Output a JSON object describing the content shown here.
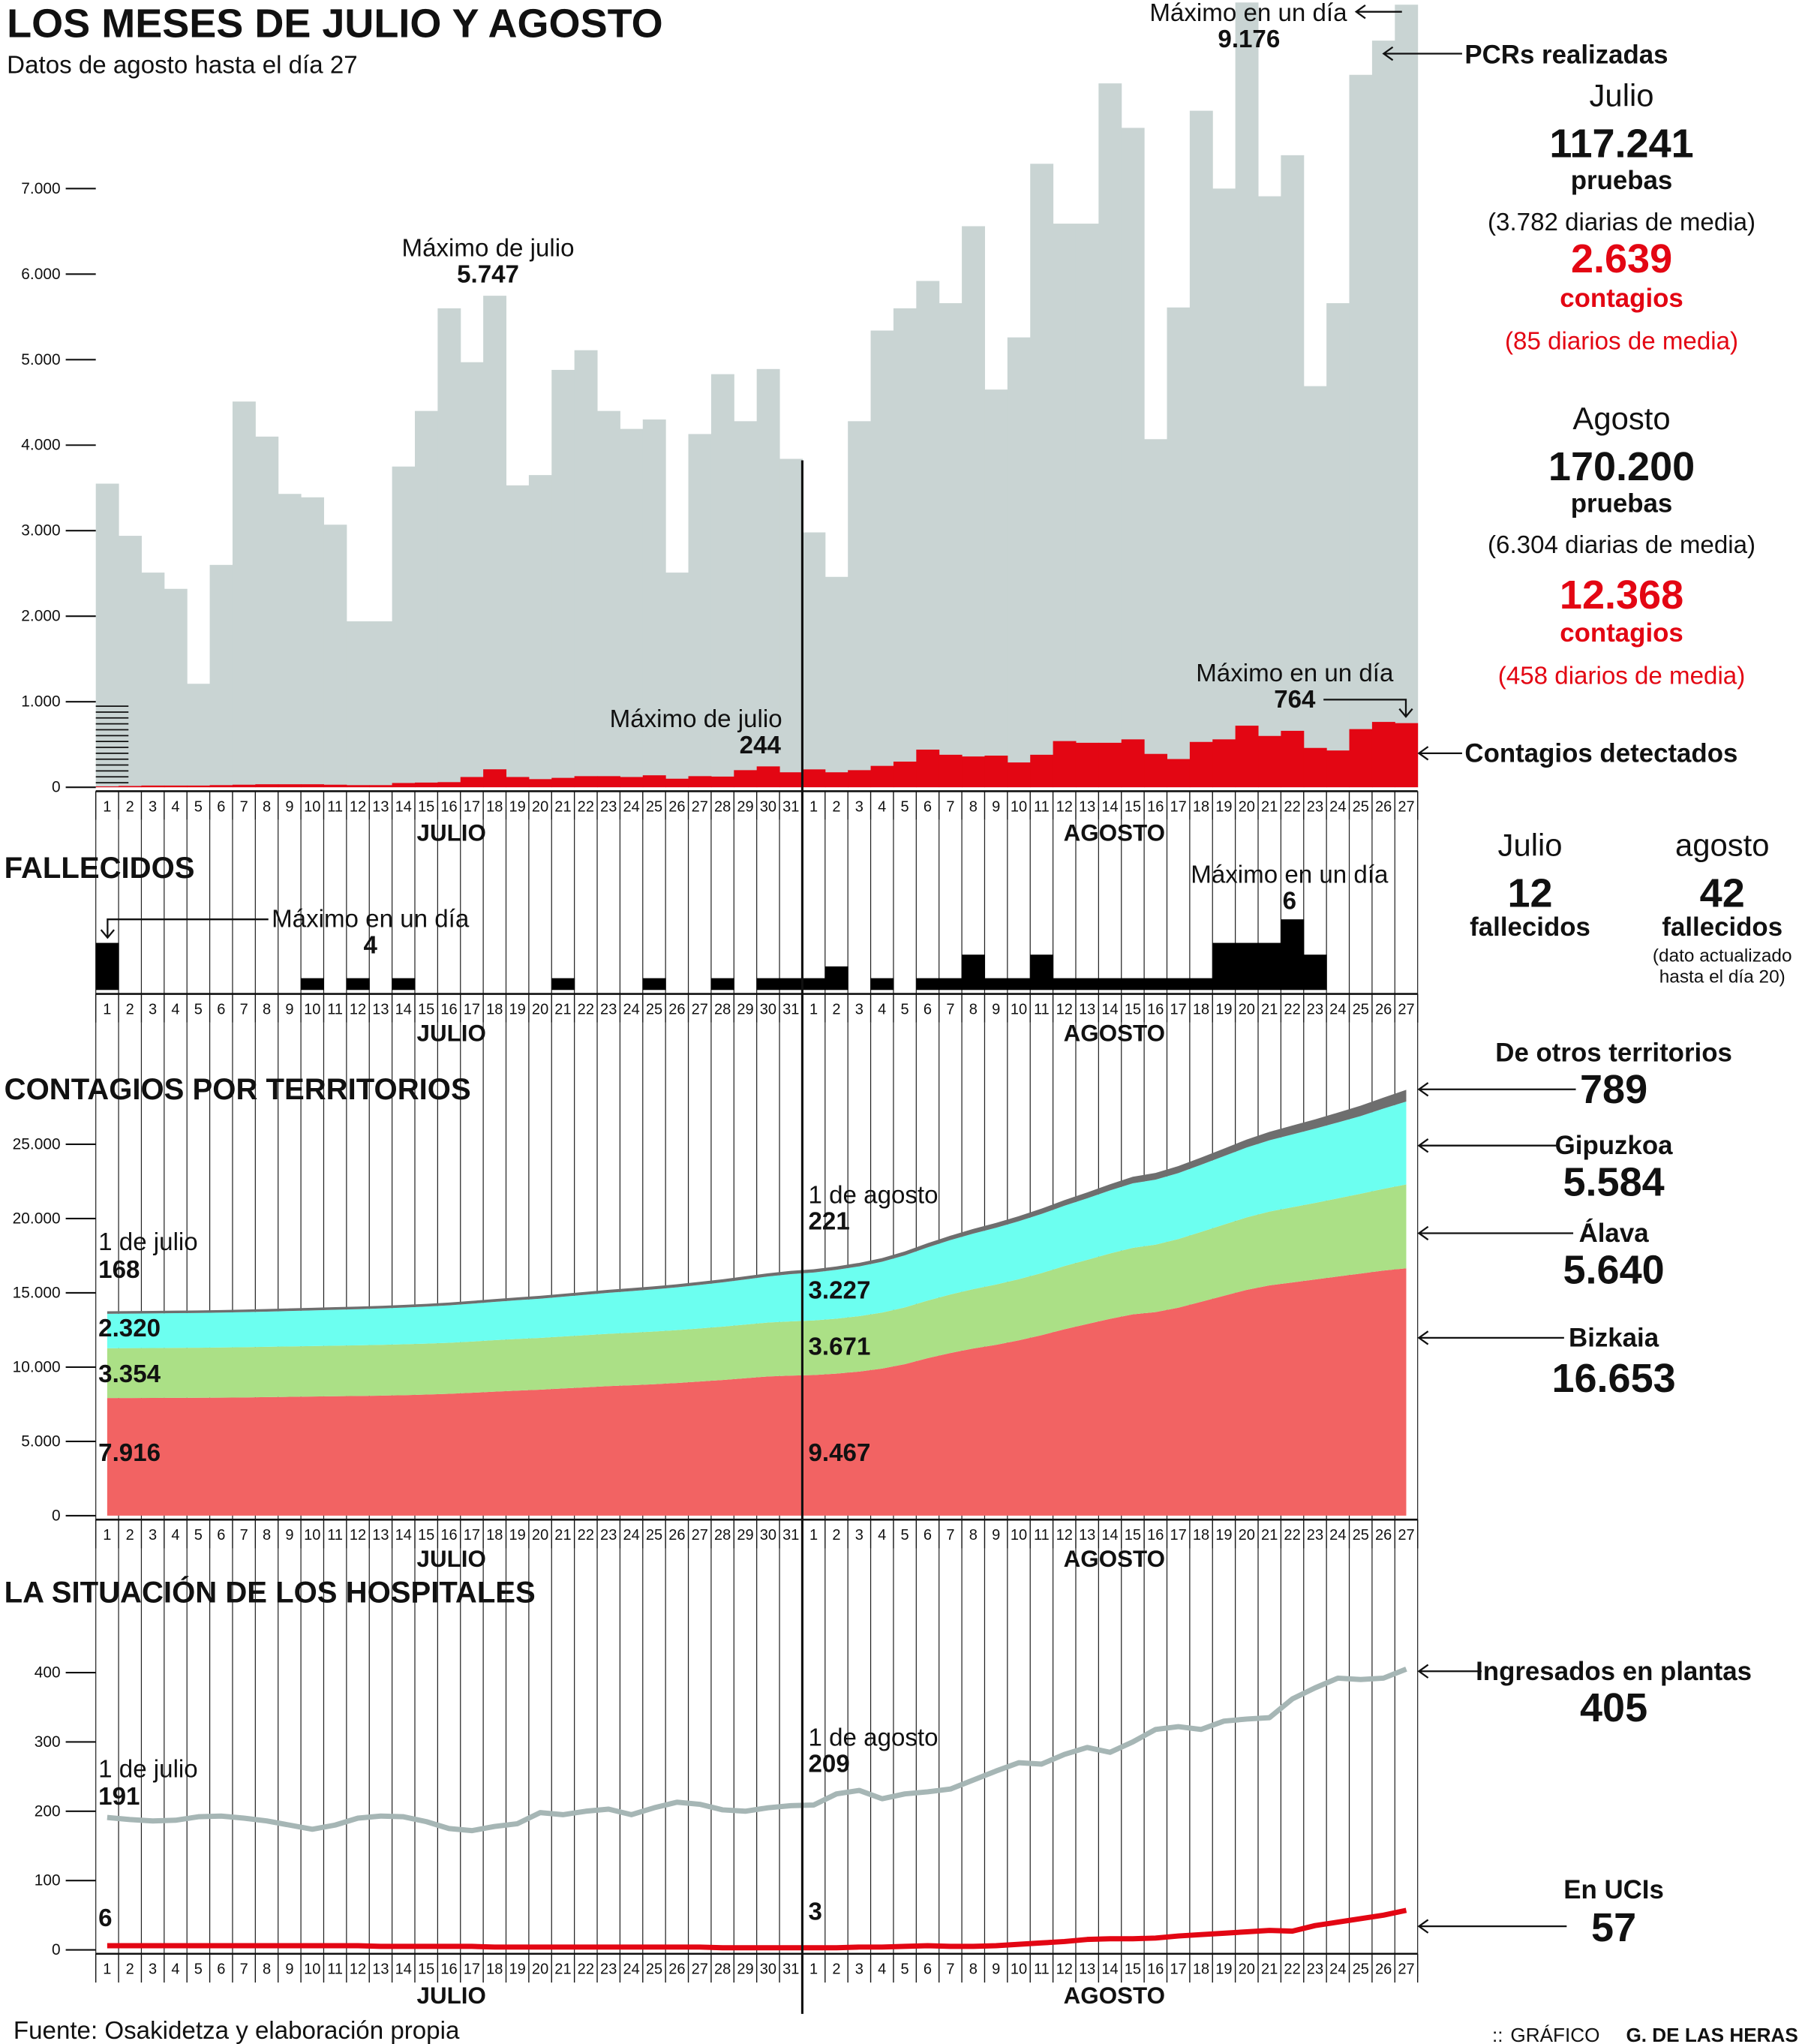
{
  "title": "LOS MESES DE JULIO Y AGOSTO",
  "subtitle": "Datos de agosto hasta el día 27",
  "months": {
    "julio": "JULIO",
    "agosto": "AGOSTO"
  },
  "colors": {
    "pcr": "#c9d4d3",
    "contagios": "#e30613",
    "fallecidos": "#000000",
    "bizkaia": "#f26363",
    "alava": "#abe086",
    "gipuzkoa": "#6cfff0",
    "otros": "#6e6e6e",
    "plantas": "#a6b6b5",
    "ucis": "#e30613"
  },
  "annotations": {
    "pcr_max_label": "Máximo en un día",
    "pcr_max_value": "9.176",
    "pcr_julio_max_label": "Máximo de julio",
    "pcr_julio_max_value": "5.747",
    "cont_julio_max_label": "Máximo de julio",
    "cont_julio_max_value": "244",
    "cont_max_label": "Máximo en un día",
    "cont_max_value": "764",
    "fall_julio_max_label": "Máximo en un día",
    "fall_julio_max_value": "4",
    "fall_max_label": "Máximo en un día",
    "fall_max_value": "6",
    "terr_jul_label": "1 de julio",
    "terr_jul_otros": "168",
    "terr_jul_gipuzkoa": "2.320",
    "terr_jul_alava": "3.354",
    "terr_jul_bizkaia": "7.916",
    "terr_ago_label": "1 de agosto",
    "terr_ago_otros": "221",
    "terr_ago_gipuzkoa": "3.227",
    "terr_ago_alava": "3.671",
    "terr_ago_bizkaia": "9.467",
    "hosp_jul_label": "1 de julio",
    "hosp_jul_plantas": "191",
    "hosp_jul_ucis": "6",
    "hosp_ago_label": "1 de agosto",
    "hosp_ago_plantas": "209",
    "hosp_ago_ucis": "3"
  },
  "sections": {
    "fallecidos": "FALLECIDOS",
    "territorios": "CONTAGIOS POR TERRITORIOS",
    "hospitales": "LA SITUACIÓN DE LOS HOSPITALES"
  },
  "summary": {
    "pcr_label": "PCRs realizadas",
    "contagios_label": "Contagios detectados",
    "julio": {
      "month": "Julio",
      "pruebas": "117.241",
      "pruebas_label": "pruebas",
      "pruebas_media": "(3.782 diarias de media)",
      "contagios": "2.639",
      "contagios_label": "contagios",
      "contagios_media": "(85 diarios de media)"
    },
    "agosto": {
      "month": "Agosto",
      "pruebas": "170.200",
      "pruebas_label": "pruebas",
      "pruebas_media": "(6.304 diarias de media)",
      "contagios": "12.368",
      "contagios_label": "contagios",
      "contagios_media": "(458 diarios de media)"
    },
    "fallecidos": {
      "julio_label": "Julio",
      "agosto_label": "agosto",
      "julio": "12",
      "agosto": "42",
      "unit": "fallecidos",
      "note1": "(dato actualizado",
      "note2": "hasta el día 20)"
    },
    "territorios": {
      "otros_label": "De otros territorios",
      "otros": "789",
      "gipuzkoa_label": "Gipuzkoa",
      "gipuzkoa": "5.584",
      "alava_label": "Álava",
      "alava": "5.640",
      "bizkaia_label": "Bizkaia",
      "bizkaia": "16.653"
    },
    "hospitales": {
      "plantas_label": "Ingresados en plantas",
      "plantas": "405",
      "ucis_label": "En UCIs",
      "ucis": "57"
    }
  },
  "footer": {
    "source": "Fuente: Osakidetza y elaboración propia",
    "credit_prefix": "GRÁFICO",
    "credit_name": "G. DE LAS HERAS"
  },
  "chart_data": [
    {
      "type": "bar",
      "title": "PCRs realizadas y contagios detectados",
      "x_labels": [
        "1",
        "2",
        "3",
        "4",
        "5",
        "6",
        "7",
        "8",
        "9",
        "10",
        "11",
        "12",
        "13",
        "14",
        "15",
        "16",
        "17",
        "18",
        "19",
        "20",
        "21",
        "22",
        "23",
        "24",
        "25",
        "26",
        "27",
        "28",
        "29",
        "30",
        "31",
        "1",
        "2",
        "3",
        "4",
        "5",
        "6",
        "7",
        "8",
        "9",
        "10",
        "11",
        "12",
        "13",
        "14",
        "15",
        "16",
        "17",
        "18",
        "19",
        "20",
        "21",
        "22",
        "23",
        "24",
        "25",
        "26",
        "27"
      ],
      "ylim": [
        0,
        9200
      ],
      "yticks": [
        0,
        1000,
        2000,
        3000,
        4000,
        5000,
        6000,
        7000
      ],
      "ytick_labels": [
        "0",
        "1.000",
        "2.000",
        "3.000",
        "4.000",
        "5.000",
        "6.000",
        "7.000"
      ],
      "series": [
        {
          "name": "PCRs realizadas",
          "values": [
            3550,
            2940,
            2510,
            2320,
            1210,
            2600,
            4510,
            4100,
            3430,
            3390,
            3070,
            1940,
            1940,
            3750,
            4400,
            5600,
            4970,
            5747,
            3530,
            3650,
            4880,
            5110,
            4400,
            4190,
            4300,
            2510,
            4130,
            4830,
            4280,
            4890,
            3840,
            2980,
            2460,
            4280,
            5340,
            5600,
            5920,
            5660,
            6560,
            4650,
            5260,
            7290,
            6590,
            6590,
            8230,
            7710,
            4070,
            5610,
            7910,
            7000,
            9176,
            6910,
            7390,
            4690,
            5660,
            8330,
            8730,
            9150
          ]
        },
        {
          "name": "Contagios detectados",
          "values": [
            10,
            15,
            20,
            20,
            20,
            25,
            30,
            35,
            35,
            35,
            30,
            25,
            25,
            50,
            55,
            60,
            120,
            210,
            120,
            95,
            110,
            130,
            130,
            120,
            140,
            100,
            130,
            125,
            200,
            244,
            175,
            209,
            175,
            200,
            250,
            300,
            440,
            380,
            360,
            370,
            290,
            380,
            540,
            520,
            520,
            560,
            390,
            330,
            530,
            560,
            720,
            600,
            660,
            460,
            430,
            680,
            764,
            750
          ]
        }
      ]
    },
    {
      "type": "bar",
      "title": "Fallecidos",
      "ylim": [
        0,
        6
      ],
      "series": [
        {
          "name": "Fallecidos",
          "values": [
            4,
            0,
            0,
            0,
            0,
            0,
            0,
            0,
            0,
            1,
            0,
            1,
            0,
            1,
            0,
            0,
            0,
            0,
            0,
            0,
            1,
            0,
            0,
            0,
            1,
            0,
            0,
            1,
            0,
            1,
            1,
            1,
            2,
            0,
            1,
            0,
            1,
            1,
            3,
            1,
            1,
            3,
            1,
            1,
            1,
            1,
            1,
            1,
            1,
            4,
            4,
            4,
            6,
            3,
            0,
            0,
            0,
            0
          ]
        }
      ]
    },
    {
      "type": "area",
      "title": "Contagios por territorios (acumulado)",
      "ylim": [
        0,
        29000
      ],
      "yticks": [
        0,
        5000,
        10000,
        15000,
        20000,
        25000
      ],
      "ytick_labels": [
        "0",
        "5.000",
        "10.000",
        "15.000",
        "20.000",
        "25.000"
      ],
      "stacked": true,
      "series": [
        {
          "name": "Bizkaia",
          "values": [
            7916,
            7920,
            7925,
            7930,
            7935,
            7945,
            7960,
            7980,
            8000,
            8020,
            8040,
            8060,
            8080,
            8110,
            8150,
            8200,
            8270,
            8350,
            8420,
            8480,
            8560,
            8640,
            8720,
            8780,
            8850,
            8930,
            9030,
            9130,
            9250,
            9370,
            9430,
            9467,
            9560,
            9700,
            9900,
            10200,
            10600,
            10950,
            11250,
            11500,
            11800,
            12150,
            12550,
            12900,
            13250,
            13550,
            13700,
            14000,
            14400,
            14800,
            15200,
            15500,
            15700,
            15900,
            16100,
            16300,
            16500,
            16653
          ]
        },
        {
          "name": "Álava",
          "values": [
            3354,
            3358,
            3362,
            3366,
            3370,
            3375,
            3380,
            3386,
            3392,
            3398,
            3404,
            3410,
            3416,
            3424,
            3432,
            3440,
            3450,
            3462,
            3474,
            3486,
            3498,
            3510,
            3522,
            3534,
            3546,
            3560,
            3576,
            3592,
            3610,
            3630,
            3650,
            3671,
            3700,
            3730,
            3770,
            3820,
            3880,
            3940,
            4000,
            4060,
            4120,
            4180,
            4250,
            4320,
            4400,
            4480,
            4540,
            4620,
            4700,
            4790,
            4880,
            4970,
            5060,
            5150,
            5260,
            5370,
            5500,
            5640
          ]
        },
        {
          "name": "Gipuzkoa",
          "values": [
            2320,
            2325,
            2330,
            2335,
            2340,
            2350,
            2360,
            2370,
            2385,
            2400,
            2415,
            2430,
            2450,
            2470,
            2495,
            2520,
            2550,
            2580,
            2610,
            2640,
            2680,
            2720,
            2760,
            2800,
            2840,
            2880,
            2930,
            2980,
            3040,
            3100,
            3180,
            3227,
            3290,
            3350,
            3420,
            3500,
            3580,
            3660,
            3740,
            3820,
            3900,
            3980,
            4060,
            4140,
            4240,
            4340,
            4380,
            4440,
            4520,
            4610,
            4700,
            4800,
            4900,
            5000,
            5110,
            5230,
            5400,
            5584
          ]
        },
        {
          "name": "De otros territorios",
          "values": [
            168,
            168,
            169,
            170,
            171,
            172,
            173,
            174,
            175,
            176,
            177,
            178,
            180,
            182,
            184,
            186,
            188,
            190,
            192,
            194,
            196,
            198,
            200,
            202,
            204,
            206,
            208,
            210,
            213,
            216,
            219,
            221,
            230,
            240,
            250,
            265,
            280,
            295,
            310,
            325,
            340,
            360,
            380,
            400,
            420,
            440,
            455,
            470,
            490,
            510,
            540,
            570,
            600,
            630,
            660,
            700,
            740,
            789
          ]
        }
      ]
    },
    {
      "type": "line",
      "title": "La situación de los hospitales",
      "ylim": [
        0,
        420
      ],
      "yticks": [
        0,
        100,
        200,
        300,
        400
      ],
      "ytick_labels": [
        "0",
        "100",
        "200",
        "300",
        "400"
      ],
      "series": [
        {
          "name": "Ingresados en plantas",
          "values": [
            191,
            188,
            186,
            187,
            192,
            193,
            190,
            186,
            180,
            174,
            180,
            190,
            193,
            192,
            185,
            175,
            172,
            178,
            182,
            198,
            195,
            200,
            203,
            195,
            205,
            213,
            210,
            202,
            200,
            205,
            208,
            209,
            225,
            230,
            218,
            225,
            228,
            232,
            245,
            258,
            270,
            268,
            282,
            292,
            285,
            300,
            318,
            322,
            318,
            330,
            333,
            335,
            362,
            378,
            392,
            390,
            392,
            405
          ]
        },
        {
          "name": "En UCIs",
          "values": [
            6,
            6,
            6,
            6,
            6,
            6,
            6,
            6,
            6,
            6,
            6,
            6,
            5,
            5,
            5,
            5,
            5,
            4,
            4,
            4,
            4,
            4,
            4,
            4,
            4,
            4,
            4,
            3,
            3,
            3,
            3,
            3,
            3,
            4,
            4,
            5,
            6,
            5,
            5,
            6,
            8,
            10,
            12,
            15,
            16,
            16,
            17,
            20,
            22,
            24,
            26,
            28,
            27,
            35,
            40,
            45,
            50,
            57
          ]
        }
      ]
    }
  ]
}
